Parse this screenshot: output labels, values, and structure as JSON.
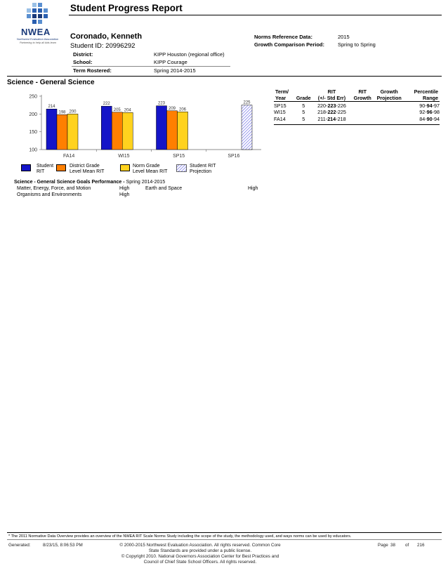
{
  "logo": {
    "name": "NWEA",
    "org": "Northwest Evaluation Association",
    "tagline": "Partnering to help all kids learn"
  },
  "report": {
    "title": "Student Progress Report"
  },
  "student": {
    "name": "Coronado, Kenneth",
    "id_label": "Student ID:",
    "id": "20996292"
  },
  "norms": {
    "reference_label": "Norms Reference Data:",
    "reference_value": "2015",
    "growth_label": "Growth Comparison Period:",
    "growth_value": "Spring to Spring"
  },
  "info": {
    "district_label": "District:",
    "district_value": "KIPP Houston (regional office)",
    "school_label": "School:",
    "school_value": "KIPP Courage",
    "term_label": "Term Rostered:",
    "term_value": "Spring 2014-2015"
  },
  "section": {
    "title": "Science - General Science"
  },
  "colors": {
    "student": "#1414c8",
    "district": "#ff7f00",
    "norm": "#ffd21e",
    "projection": "#6e6ee6"
  },
  "chart_data": {
    "type": "bar",
    "categories": [
      "FA14",
      "WI15",
      "SP15",
      "SP16"
    ],
    "ylim": [
      100,
      250
    ],
    "yticks": [
      100,
      150,
      200,
      250
    ],
    "series": [
      {
        "name": "Student RIT",
        "values": [
          214,
          222,
          223,
          null
        ]
      },
      {
        "name": "District Grade Level Mean RIT",
        "values": [
          198,
          205,
          209,
          null
        ]
      },
      {
        "name": "Norm Grade Level Mean RIT",
        "values": [
          200,
          204,
          206,
          null
        ]
      },
      {
        "name": "Student RIT Projection",
        "values": [
          null,
          null,
          null,
          225
        ],
        "pattern": "hatched"
      }
    ],
    "legend": [
      {
        "line1": "Student",
        "line2": "RIT"
      },
      {
        "line1": "District Grade",
        "line2": "Level Mean RIT"
      },
      {
        "line1": "Norm Grade",
        "line2": "Level Mean RIT"
      },
      {
        "line1": "Student RIT",
        "line2": "Projection"
      }
    ]
  },
  "table": {
    "headers": [
      {
        "line1": "Term/",
        "line2": "Year"
      },
      {
        "line1": "",
        "line2": "Grade"
      },
      {
        "line1": "RIT",
        "line2": "(+/- Std Err)"
      },
      {
        "line1": "RIT",
        "line2": "Growth"
      },
      {
        "line1": "Growth",
        "line2": "Projection"
      },
      {
        "line1": "Percentile",
        "line2": "Range"
      }
    ],
    "rows": [
      {
        "term": "SP15",
        "grade": "5",
        "rit_low": "220-",
        "rit": "223",
        "rit_high": "-226",
        "growth": "",
        "projection": "",
        "pct_low": "90-",
        "pct": "94",
        "pct_high": "-97"
      },
      {
        "term": "WI15",
        "grade": "5",
        "rit_low": "218-",
        "rit": "222",
        "rit_high": "-225",
        "growth": "",
        "projection": "",
        "pct_low": "92-",
        "pct": "96",
        "pct_high": "-98"
      },
      {
        "term": "FA14",
        "grade": "5",
        "rit_low": "211-",
        "rit": "214",
        "rit_high": "-218",
        "growth": "",
        "projection": "",
        "pct_low": "84-",
        "pct": "90",
        "pct_high": "-94"
      }
    ]
  },
  "goals": {
    "title_bold": "Science - General Science Goals Performance -",
    "title_term": "Spring 2014-2015",
    "items": [
      {
        "name": "Matter, Energy, Force, and Motion",
        "level": "High"
      },
      {
        "name": "Earth and Space",
        "level": "High"
      },
      {
        "name": "Organisms and Environments",
        "level": "High"
      }
    ]
  },
  "footer": {
    "footnote": "* The 2011 Normative Data Overview provides an overview of the NWEA RIT Scale Norms Study including the scope of the study, the methodology used, and ways norms can be used by educators.",
    "generated_label": "Generated:",
    "generated_value": "8/23/15, 8:06:53 PM",
    "copyright_1": "© 2000-2015 Northwest Evaluation Association. All rights reserved. Common Core",
    "copyright_2": "State Standards are provided under a public license.",
    "copyright_3": "© Copyright 2010. National Governors Association Center for Best Practices and",
    "copyright_4": "Council of Chief State School Officers. All rights reserved.",
    "page_label": "Page",
    "page_number": "38",
    "of_label": "of",
    "page_total": "216"
  }
}
